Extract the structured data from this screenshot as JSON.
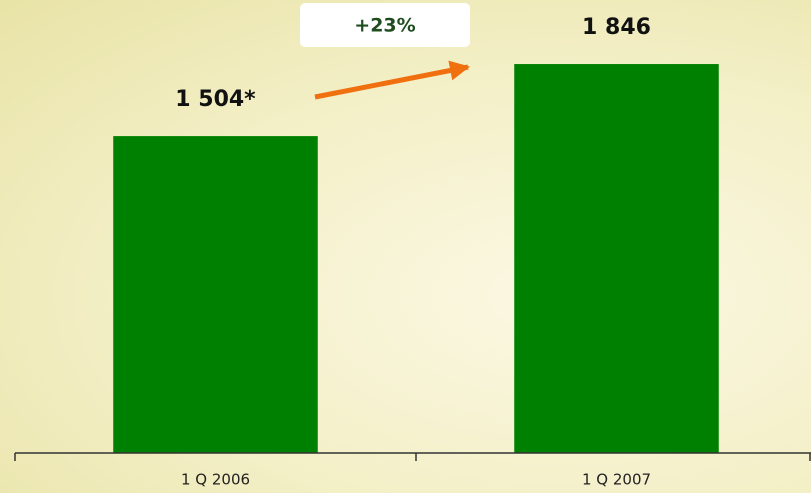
{
  "chart_data": {
    "type": "bar",
    "annotation": "+23%",
    "categories": [
      "1 Q 2006",
      "1 Q 2007"
    ],
    "values": [
      1504,
      1846
    ],
    "value_labels": [
      "1 504*",
      "1 846"
    ],
    "color": "#008000",
    "ylim": [
      0,
      2150
    ]
  }
}
